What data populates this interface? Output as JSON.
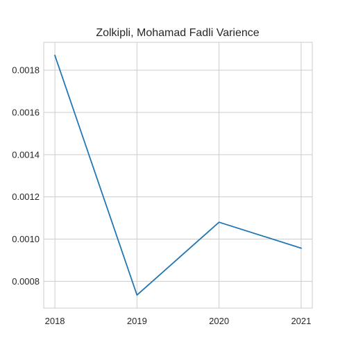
{
  "chart_data": {
    "type": "line",
    "title": "Zolkipli, Mohamad Fadli Varience",
    "xlabel": "",
    "ylabel": "",
    "x": [
      "2018",
      "2019",
      "2020",
      "2021"
    ],
    "series": [
      {
        "values": [
          0.00187,
          0.000735,
          0.00108,
          0.000957
        ],
        "color": "#1f77b4"
      }
    ],
    "xlim": [
      -0.136,
      3.136
    ],
    "ylim": [
      0.000673,
      0.001932
    ],
    "yticks": [
      0.0008,
      0.001,
      0.0012,
      0.0014,
      0.0016,
      0.0018
    ],
    "ytick_labels": [
      "0.0008",
      "0.0010",
      "0.0012",
      "0.0014",
      "0.0016",
      "0.0018"
    ],
    "grid": true,
    "legend": "none"
  }
}
